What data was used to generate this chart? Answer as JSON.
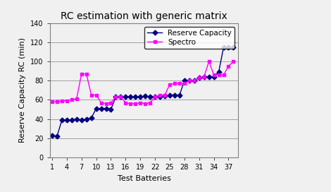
{
  "title": "RC estimation with generic matrix",
  "xlabel": "Test Batteries",
  "ylabel": "Reserve Capacity RC (min)",
  "xlim": [
    0.5,
    39.0
  ],
  "ylim": [
    0,
    140
  ],
  "yticks": [
    0,
    20,
    40,
    60,
    80,
    100,
    120,
    140
  ],
  "xticks": [
    1,
    4,
    7,
    10,
    13,
    16,
    19,
    22,
    25,
    28,
    31,
    34,
    37
  ],
  "rc_x": [
    1,
    2,
    3,
    4,
    5,
    6,
    7,
    8,
    9,
    10,
    11,
    12,
    13,
    14,
    15,
    16,
    17,
    18,
    19,
    20,
    21,
    22,
    23,
    24,
    25,
    26,
    27,
    28,
    29,
    30,
    31,
    32,
    33,
    34,
    35,
    36,
    37,
    38
  ],
  "rc_y": [
    23,
    22,
    39,
    39,
    39,
    40,
    39,
    40,
    41,
    51,
    51,
    51,
    50,
    63,
    63,
    63,
    63,
    63,
    63,
    64,
    63,
    63,
    63,
    64,
    65,
    65,
    65,
    80,
    80,
    80,
    83,
    84,
    84,
    84,
    89,
    115,
    115,
    115
  ],
  "spectro_x": [
    1,
    2,
    3,
    4,
    5,
    6,
    7,
    8,
    9,
    10,
    11,
    12,
    13,
    14,
    15,
    16,
    17,
    18,
    19,
    20,
    21,
    22,
    23,
    24,
    25,
    26,
    27,
    28,
    29,
    30,
    31,
    32,
    33,
    34,
    35,
    36,
    37,
    38
  ],
  "spectro_y": [
    58,
    58,
    59,
    59,
    60,
    61,
    87,
    87,
    65,
    65,
    57,
    56,
    57,
    63,
    63,
    57,
    56,
    56,
    57,
    56,
    57,
    63,
    65,
    65,
    76,
    77,
    77,
    77,
    80,
    80,
    83,
    84,
    100,
    86,
    86,
    86,
    95,
    100
  ],
  "rc_color": "#000080",
  "spectro_color": "#FF00FF",
  "fig_facecolor": "#F0F0F0",
  "plot_facecolor": "#F0F0F0",
  "legend_rc": "Reserve Capacity",
  "legend_spectro": "Spectro",
  "title_fontsize": 10,
  "label_fontsize": 8,
  "tick_fontsize": 7,
  "legend_fontsize": 7.5
}
